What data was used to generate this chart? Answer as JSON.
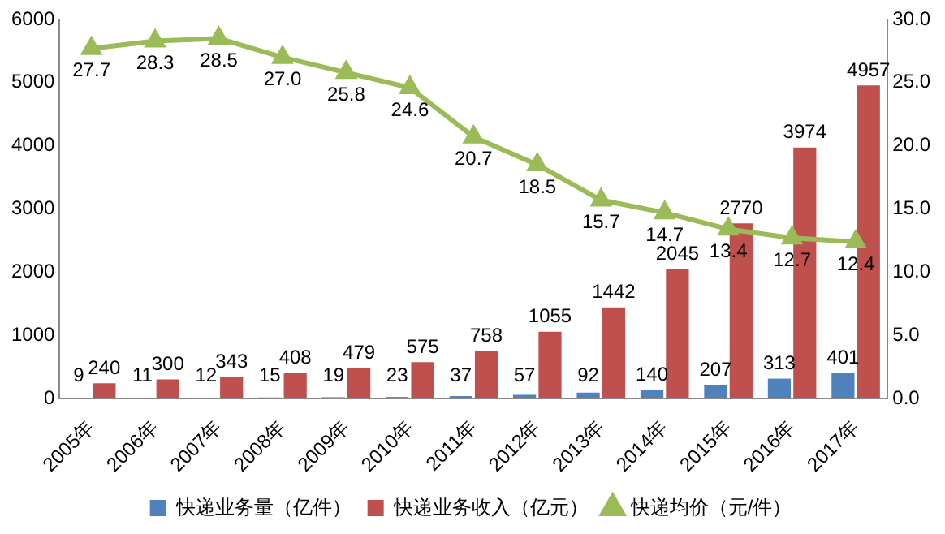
{
  "chart_data": {
    "type": "bar",
    "categories": [
      "2005年",
      "2006年",
      "2007年",
      "2008年",
      "2009年",
      "2010年",
      "2011年",
      "2012年",
      "2013年",
      "2014年",
      "2015年",
      "2016年",
      "2017年"
    ],
    "series": [
      {
        "name": "快递业务量（亿件）",
        "color": "#4f81bd",
        "values": [
          9,
          11,
          12,
          15,
          19,
          23,
          37,
          57,
          92,
          140,
          207,
          313,
          401
        ]
      },
      {
        "name": "快递业务收入（亿元）",
        "color": "#c0504d",
        "values": [
          240,
          300,
          343,
          408,
          479,
          575,
          758,
          1055,
          1442,
          2045,
          2770,
          3974,
          4957
        ]
      },
      {
        "name": "快递均价（元/件）",
        "type": "line",
        "axis": "y2",
        "color": "#9bbb59",
        "marker": "triangle",
        "values": [
          27.7,
          28.3,
          28.5,
          27.0,
          25.8,
          24.6,
          20.7,
          18.5,
          15.7,
          14.7,
          13.4,
          12.7,
          12.4
        ],
        "value_labels": [
          "27.7",
          "28.3",
          "28.5",
          "27.0",
          "25.8",
          "24.6",
          "20.7",
          "18.5",
          "15.7",
          "14.7",
          "13.4",
          "12.7",
          "12.4"
        ]
      }
    ],
    "ylim": [
      0,
      6000
    ],
    "yticks": [
      0,
      1000,
      2000,
      3000,
      4000,
      5000,
      6000
    ],
    "y2lim": [
      0,
      30
    ],
    "y2ticks": [
      {
        "value": 0,
        "label": "0.0"
      },
      {
        "value": 5,
        "label": "5.0"
      },
      {
        "value": 10,
        "label": "10.0"
      },
      {
        "value": 15,
        "label": "15.0"
      },
      {
        "value": 20,
        "label": "20.0"
      },
      {
        "value": 25,
        "label": "25.0"
      },
      {
        "value": 30,
        "label": "30.0"
      }
    ],
    "data_labels": true,
    "legend": "bottom",
    "grid": false
  }
}
